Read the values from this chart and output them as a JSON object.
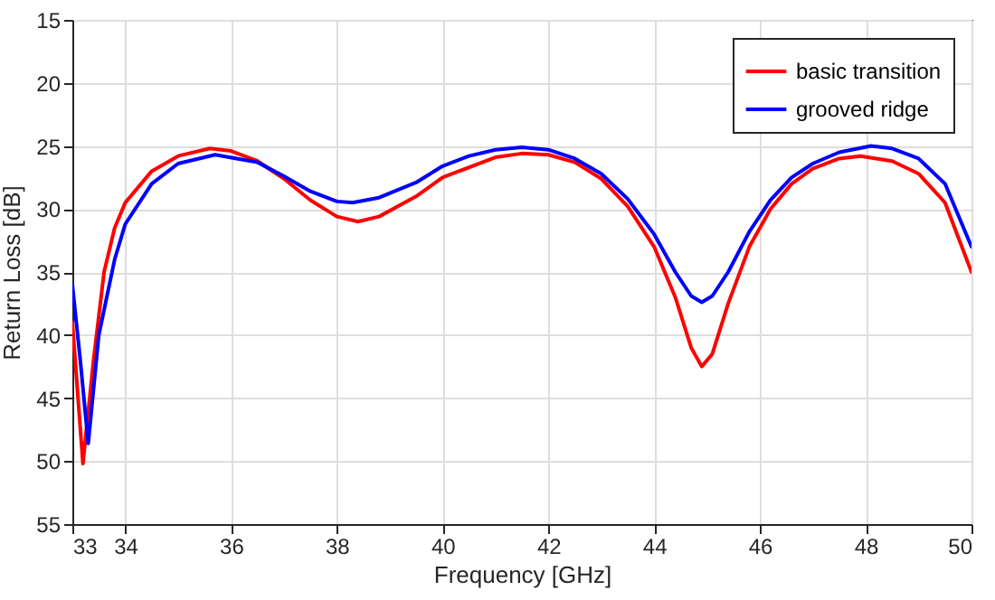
{
  "chart_data": {
    "type": "line",
    "xlabel": "Frequency [GHz]",
    "ylabel": "Return Loss [dB]",
    "xlim": [
      33,
      50
    ],
    "xticks": [
      33,
      34,
      36,
      38,
      40,
      42,
      44,
      46,
      48,
      50
    ],
    "ylim": [
      55,
      15
    ],
    "yticks": [
      15,
      20,
      25,
      30,
      35,
      40,
      45,
      50,
      55
    ],
    "grid": true,
    "legend": "top right",
    "marker": "none",
    "line_style": "solid",
    "series": [
      {
        "name": "basic transition",
        "color": "#ff0000",
        "x": [
          33.0,
          33.2,
          33.4,
          33.6,
          33.8,
          34,
          34.5,
          35,
          35.6,
          36,
          36.5,
          37,
          37.5,
          38,
          38.4,
          38.8,
          39.5,
          40,
          41,
          41.5,
          42,
          42.5,
          43,
          43.5,
          44,
          44.4,
          44.7,
          44.9,
          45.1,
          45.4,
          45.8,
          46.2,
          46.6,
          47,
          47.5,
          47.9,
          48.5,
          49,
          49.5,
          50
        ],
        "values": [
          39,
          50.2,
          42,
          35,
          31.5,
          29.5,
          27,
          25.8,
          25.2,
          25.4,
          26.2,
          27.6,
          29.3,
          30.6,
          31,
          30.6,
          29,
          27.5,
          25.9,
          25.6,
          25.7,
          26.3,
          27.6,
          29.8,
          33,
          37,
          41,
          42.5,
          41.5,
          37.5,
          33,
          30,
          28,
          26.8,
          26,
          25.8,
          26.2,
          27.2,
          29.5,
          35
        ]
      },
      {
        "name": "grooved ridge",
        "color": "#0000ff",
        "x": [
          33.0,
          33.15,
          33.3,
          33.5,
          33.8,
          34,
          34.5,
          35,
          35.7,
          36.5,
          37,
          37.5,
          38,
          38.3,
          38.8,
          39.5,
          40,
          40.5,
          41,
          41.5,
          42,
          42.5,
          43,
          43.5,
          44,
          44.4,
          44.7,
          44.9,
          45.1,
          45.4,
          45.8,
          46.2,
          46.6,
          47,
          47.5,
          48.1,
          48.5,
          49,
          49.5,
          50
        ],
        "values": [
          36,
          42,
          48.6,
          40,
          34,
          31.2,
          28,
          26.4,
          25.7,
          26.3,
          27.4,
          28.6,
          29.4,
          29.5,
          29.1,
          27.9,
          26.6,
          25.8,
          25.3,
          25.1,
          25.3,
          26,
          27.2,
          29.2,
          32,
          35,
          36.9,
          37.4,
          36.9,
          35,
          31.8,
          29.3,
          27.5,
          26.4,
          25.5,
          25,
          25.2,
          26,
          28,
          33
        ]
      }
    ]
  }
}
